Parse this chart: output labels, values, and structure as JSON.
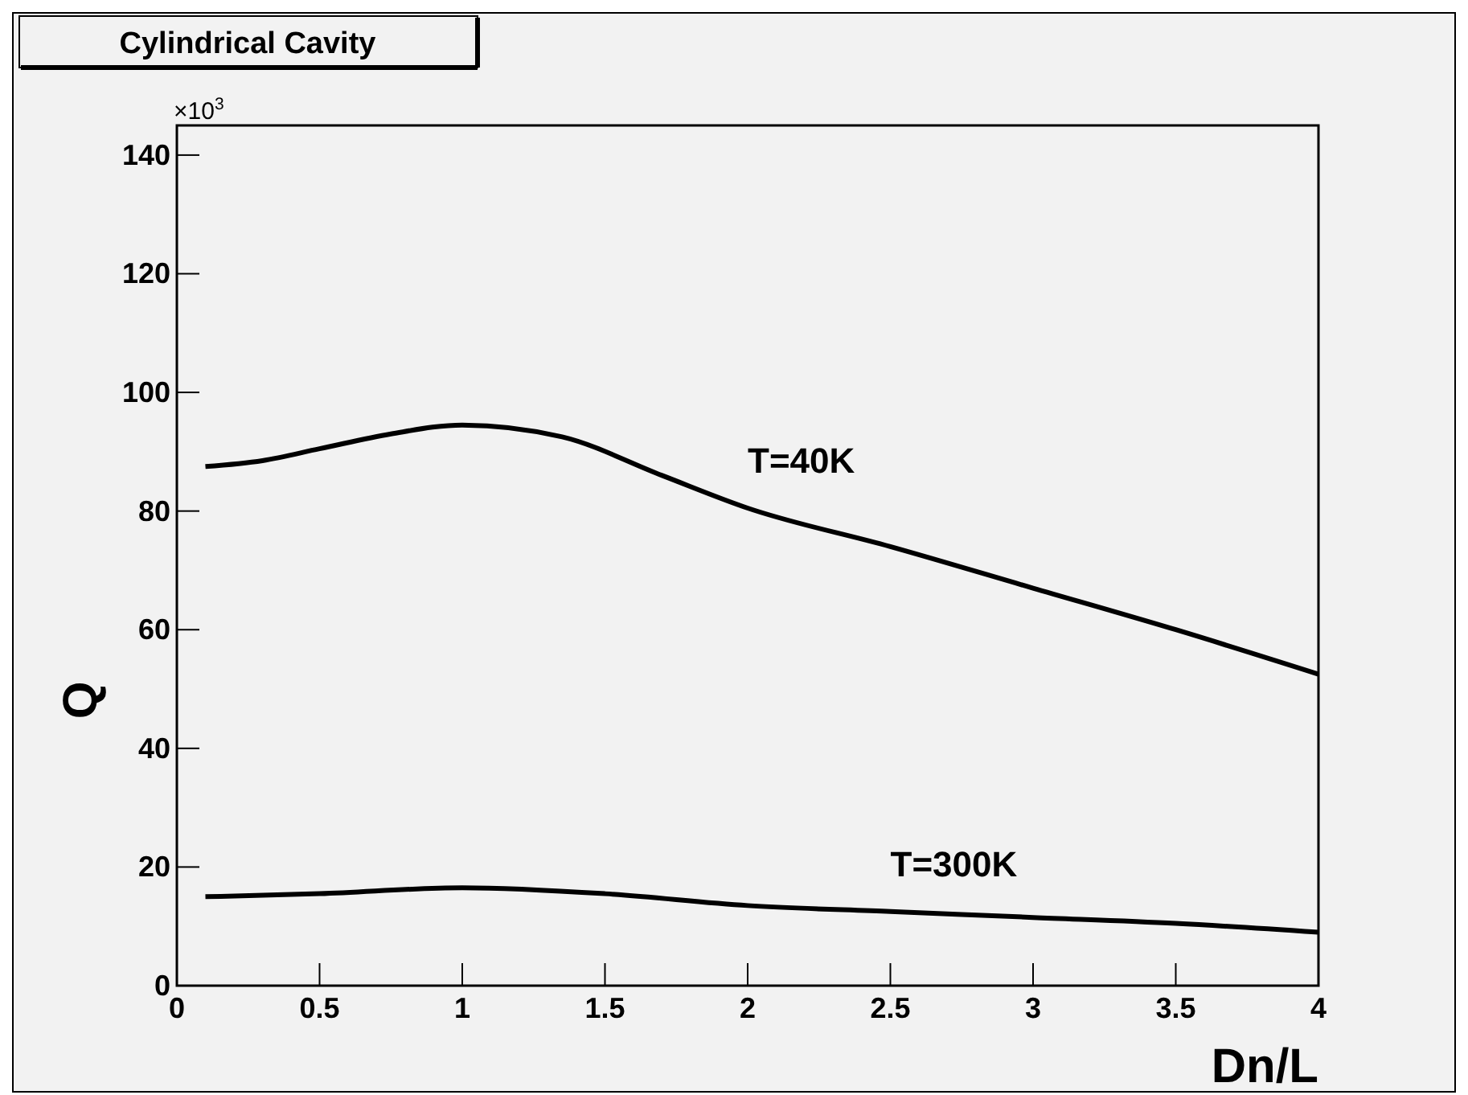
{
  "chart_data": {
    "type": "line",
    "title": "Cylindrical Cavity",
    "xlabel": "Dn/L",
    "ylabel": "Q",
    "annotations": [
      "×10$^{3}$"
    ],
    "xlim": [
      0,
      4
    ],
    "xticks": [
      0,
      0.5,
      1,
      1.5,
      2,
      2.5,
      3,
      3.5,
      4
    ],
    "ylim": [
      0,
      145
    ],
    "yticks": [
      0,
      20,
      40,
      60,
      80,
      100,
      120,
      140
    ],
    "grid": false,
    "marker": "none",
    "line_style": "solid",
    "series": [
      {
        "name": "T=40K",
        "color": "#000000",
        "x": [
          0.1,
          0.3,
          0.5,
          0.75,
          1,
          1.35,
          1.7,
          2,
          2.5,
          3,
          3.5,
          4
        ],
        "values": [
          87.5,
          88.5,
          90.5,
          93,
          94.5,
          92.5,
          86,
          80.5,
          74,
          67,
          60,
          52.5
        ]
      },
      {
        "name": "T=300K",
        "color": "#000000",
        "x": [
          0.1,
          0.5,
          1,
          1.5,
          2,
          2.5,
          3,
          3.5,
          4
        ],
        "values": [
          15,
          15.5,
          16.5,
          15.5,
          13.5,
          12.5,
          11.5,
          10.5,
          9
        ]
      }
    ]
  }
}
